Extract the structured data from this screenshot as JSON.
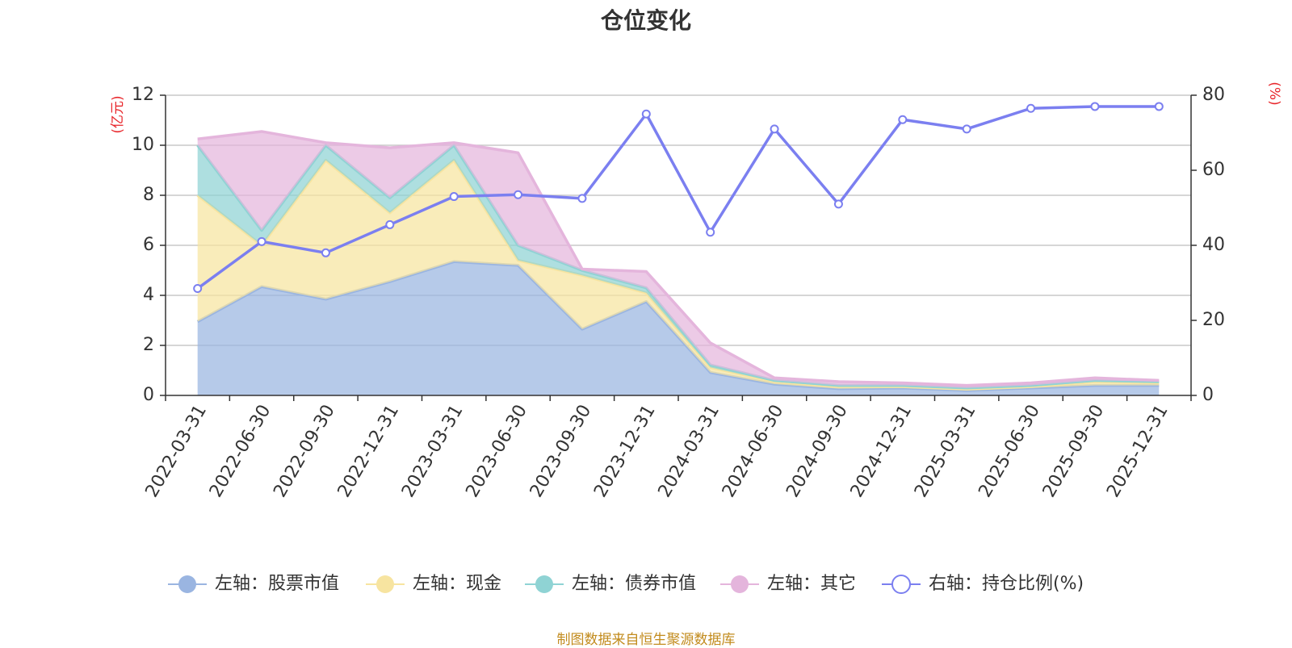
{
  "title": "仓位变化",
  "footer": "制图数据来自恒生聚源数据库",
  "chart_data": {
    "type": "area",
    "title": "仓位变化",
    "categories": [
      "2022-03-31",
      "2022-06-30",
      "2022-09-30",
      "2022-12-31",
      "2023-03-31",
      "2023-06-30",
      "2023-09-30",
      "2023-12-31",
      "2024-03-31",
      "2024-06-30",
      "2024-09-30",
      "2024-12-31",
      "2025-03-31",
      "2025-06-30",
      "2025-09-30",
      "2025-12-31"
    ],
    "y_left": {
      "unit_label": "(亿元)",
      "range": [
        0,
        12
      ],
      "ticks": [
        0,
        2,
        4,
        6,
        8,
        10,
        12
      ]
    },
    "y_right": {
      "unit_label": "(%)",
      "range": [
        0,
        80
      ],
      "ticks": [
        0,
        20,
        40,
        60,
        80
      ]
    },
    "grid": true,
    "legend_position": "bottom",
    "series": [
      {
        "name": "左轴：股票市值",
        "type": "stacked-area",
        "axis": "left",
        "color": "#9ab5e1",
        "values": [
          2.95,
          4.35,
          3.85,
          4.55,
          5.35,
          5.2,
          2.65,
          3.75,
          0.92,
          0.45,
          0.27,
          0.3,
          0.2,
          0.3,
          0.4,
          0.4
        ]
      },
      {
        "name": "左轴：现金",
        "type": "stacked-area",
        "axis": "left",
        "color": "#f7e4a0",
        "values": [
          5.05,
          1.65,
          5.55,
          2.75,
          4.05,
          0.2,
          2.15,
          0.35,
          0.2,
          0.1,
          0.08,
          0.05,
          0.05,
          0.05,
          0.15,
          0.1
        ]
      },
      {
        "name": "左轴：债券市值",
        "type": "stacked-area",
        "axis": "left",
        "color": "#8fd3d4",
        "values": [
          2.0,
          0.6,
          0.6,
          0.6,
          0.6,
          0.6,
          0.2,
          0.2,
          0.1,
          0.05,
          0.05,
          0.05,
          0.05,
          0.05,
          0.05,
          0.05
        ]
      },
      {
        "name": "左轴：其它",
        "type": "stacked-area",
        "axis": "left",
        "color": "#e4b5dc",
        "values": [
          0.25,
          3.95,
          0.1,
          2.0,
          0.1,
          3.7,
          0.05,
          0.65,
          0.88,
          0.1,
          0.15,
          0.1,
          0.1,
          0.1,
          0.1,
          0.05
        ]
      },
      {
        "name": "右轴：持仓比例(%)",
        "type": "line",
        "axis": "right",
        "color": "#7b7ff0",
        "values": [
          28.5,
          41,
          38,
          45.5,
          53,
          53.5,
          52.5,
          75,
          43.5,
          71,
          51,
          73.5,
          71,
          76.5,
          77,
          77
        ]
      }
    ]
  }
}
